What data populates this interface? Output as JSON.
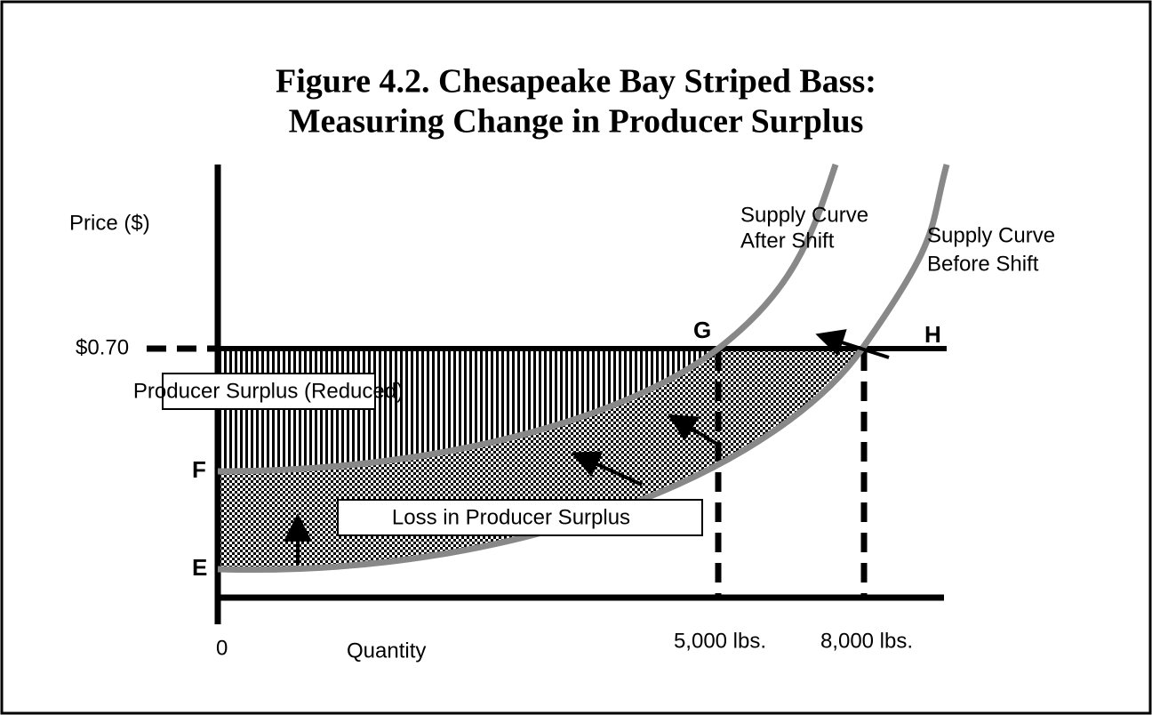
{
  "title": {
    "line1": "Figure 4.2. Chesapeake Bay Striped Bass:",
    "line2": "Measuring Change in Producer Surplus"
  },
  "axes": {
    "y_label": "Price ($)",
    "price": "$0.70",
    "origin": "0",
    "x_label": "Quantity",
    "q1": "5,000 lbs.",
    "q2": "8,000 lbs."
  },
  "points": {
    "G": "G",
    "H": "H",
    "F": "F",
    "E": "E"
  },
  "curves": {
    "after": [
      "Supply Curve",
      "After Shift"
    ],
    "before": [
      "Supply Curve",
      "Before Shift"
    ]
  },
  "boxes": {
    "reduced": "Producer Surplus (Reduced)",
    "loss": "Loss in Producer Surplus"
  }
}
